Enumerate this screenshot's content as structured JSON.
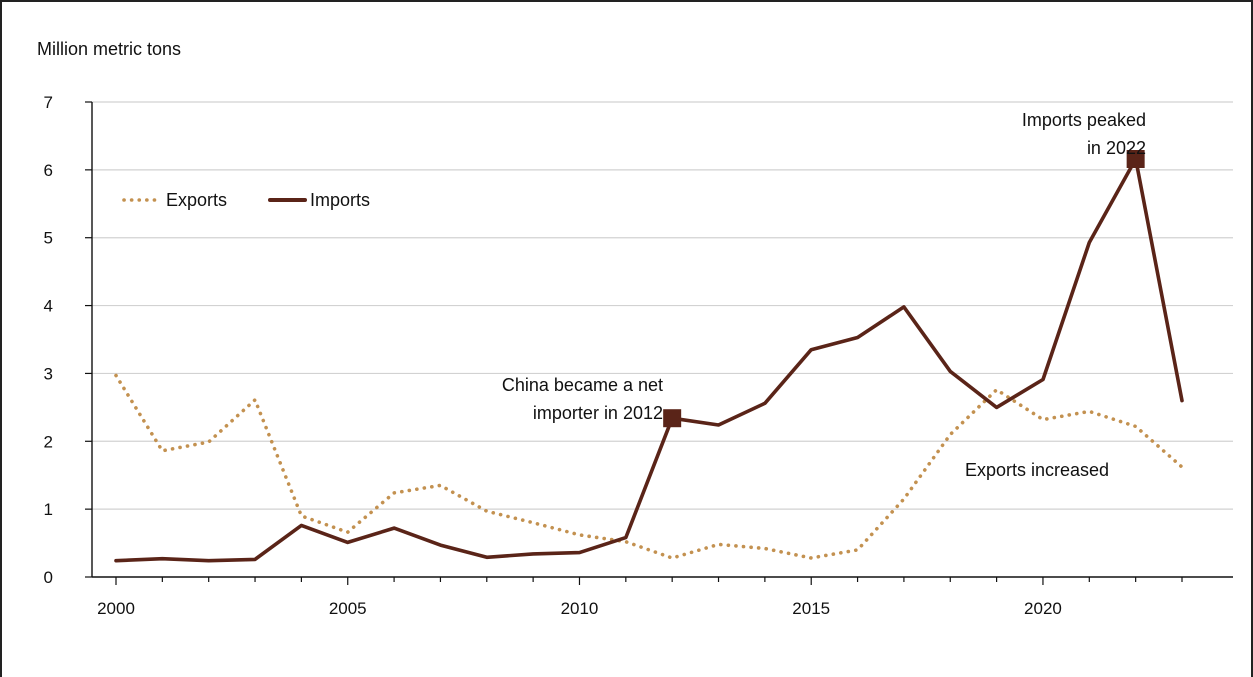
{
  "chart_data": {
    "type": "line",
    "ylabel": "Million metric tons",
    "ylim": [
      0,
      7
    ],
    "yticks": [
      0,
      1,
      2,
      3,
      4,
      5,
      6,
      7
    ],
    "xlim": [
      2000,
      2023
    ],
    "xticks": [
      2000,
      2005,
      2010,
      2015,
      2020
    ],
    "grid": "horizontal",
    "legend_position": "top-left",
    "x": [
      2000,
      2001,
      2002,
      2003,
      2004,
      2005,
      2006,
      2007,
      2008,
      2009,
      2010,
      2011,
      2012,
      2013,
      2014,
      2015,
      2016,
      2017,
      2018,
      2019,
      2020,
      2021,
      2022,
      2023
    ],
    "series": [
      {
        "name": "Exports",
        "style": "dotted",
        "color": "#c39150",
        "values": [
          2.97,
          1.86,
          1.99,
          2.61,
          0.9,
          0.66,
          1.24,
          1.35,
          0.97,
          0.8,
          0.62,
          0.52,
          0.28,
          0.48,
          0.42,
          0.28,
          0.4,
          1.15,
          2.1,
          2.76,
          2.32,
          2.44,
          2.22,
          1.62
        ]
      },
      {
        "name": "Imports",
        "style": "solid",
        "color": "#5a2418",
        "values": [
          0.24,
          0.27,
          0.24,
          0.26,
          0.76,
          0.51,
          0.72,
          0.47,
          0.29,
          0.34,
          0.36,
          0.58,
          2.34,
          2.24,
          2.56,
          3.35,
          3.53,
          3.98,
          3.03,
          2.5,
          2.91,
          4.93,
          6.16,
          2.6
        ]
      }
    ],
    "annotations": [
      {
        "lines": [
          "China became a net",
          "importer in 2012"
        ],
        "x": 2012,
        "y": 2.34,
        "marker": true
      },
      {
        "lines": [
          "Imports peaked",
          "in 2022"
        ],
        "x": 2022,
        "y": 6.16,
        "marker": true
      },
      {
        "lines": [
          "Exports increased"
        ],
        "x": 2019,
        "y": 1.6,
        "marker": false
      }
    ]
  }
}
